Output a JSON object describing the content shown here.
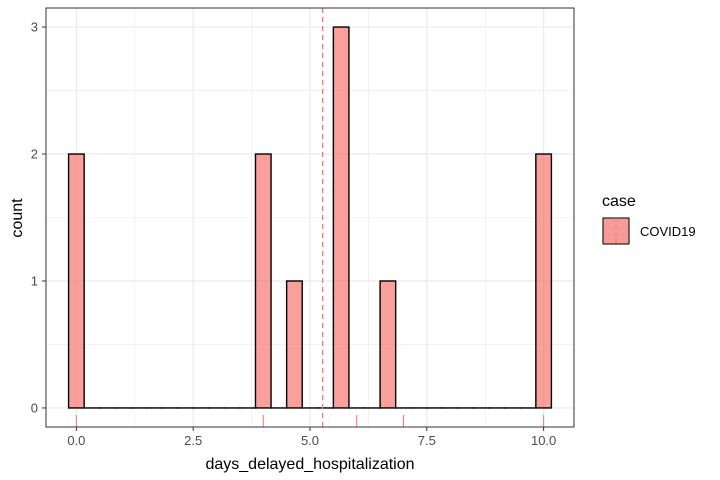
{
  "chart_data": {
    "type": "histogram",
    "xlabel": "days_delayed_hospitalization",
    "ylabel": "count",
    "xlim": [
      -0.65,
      10.65
    ],
    "ylim": [
      -0.15,
      3.15
    ],
    "x_ticks": [
      0.0,
      2.5,
      5.0,
      7.5,
      10.0
    ],
    "x_tick_labels": [
      "0.0",
      "2.5",
      "5.0",
      "7.5",
      "10.0"
    ],
    "y_ticks": [
      0,
      1,
      2,
      3
    ],
    "y_tick_labels": [
      "0",
      "1",
      "2",
      "3"
    ],
    "bin_width": 0.3333,
    "bin_centers": [
      0.0,
      0.3333,
      0.6667,
      1.0,
      1.3333,
      1.6667,
      2.0,
      2.3333,
      2.6667,
      3.0,
      3.3333,
      3.6667,
      4.0,
      4.3333,
      4.6667,
      5.0,
      5.3333,
      5.6667,
      6.0,
      6.3333,
      6.6667,
      7.0,
      7.3333,
      7.6667,
      8.0,
      8.3333,
      8.6667,
      9.0,
      9.3333,
      9.6667,
      10.0
    ],
    "counts": [
      2,
      0,
      0,
      0,
      0,
      0,
      0,
      0,
      0,
      0,
      0,
      0,
      2,
      0,
      1,
      0,
      0,
      3,
      0,
      0,
      1,
      0,
      0,
      0,
      0,
      0,
      0,
      0,
      0,
      0,
      2
    ],
    "rug_values": [
      0,
      4,
      6,
      7,
      10
    ],
    "mean_line": 5.27,
    "grid": true,
    "legend": {
      "title": "case",
      "position": "right",
      "entries": [
        {
          "label": "COVID19",
          "fill": "#F8766D"
        }
      ]
    },
    "colors": {
      "fill": "#F8766D",
      "line": "#F8766D",
      "bar_outline": "#000000"
    }
  }
}
